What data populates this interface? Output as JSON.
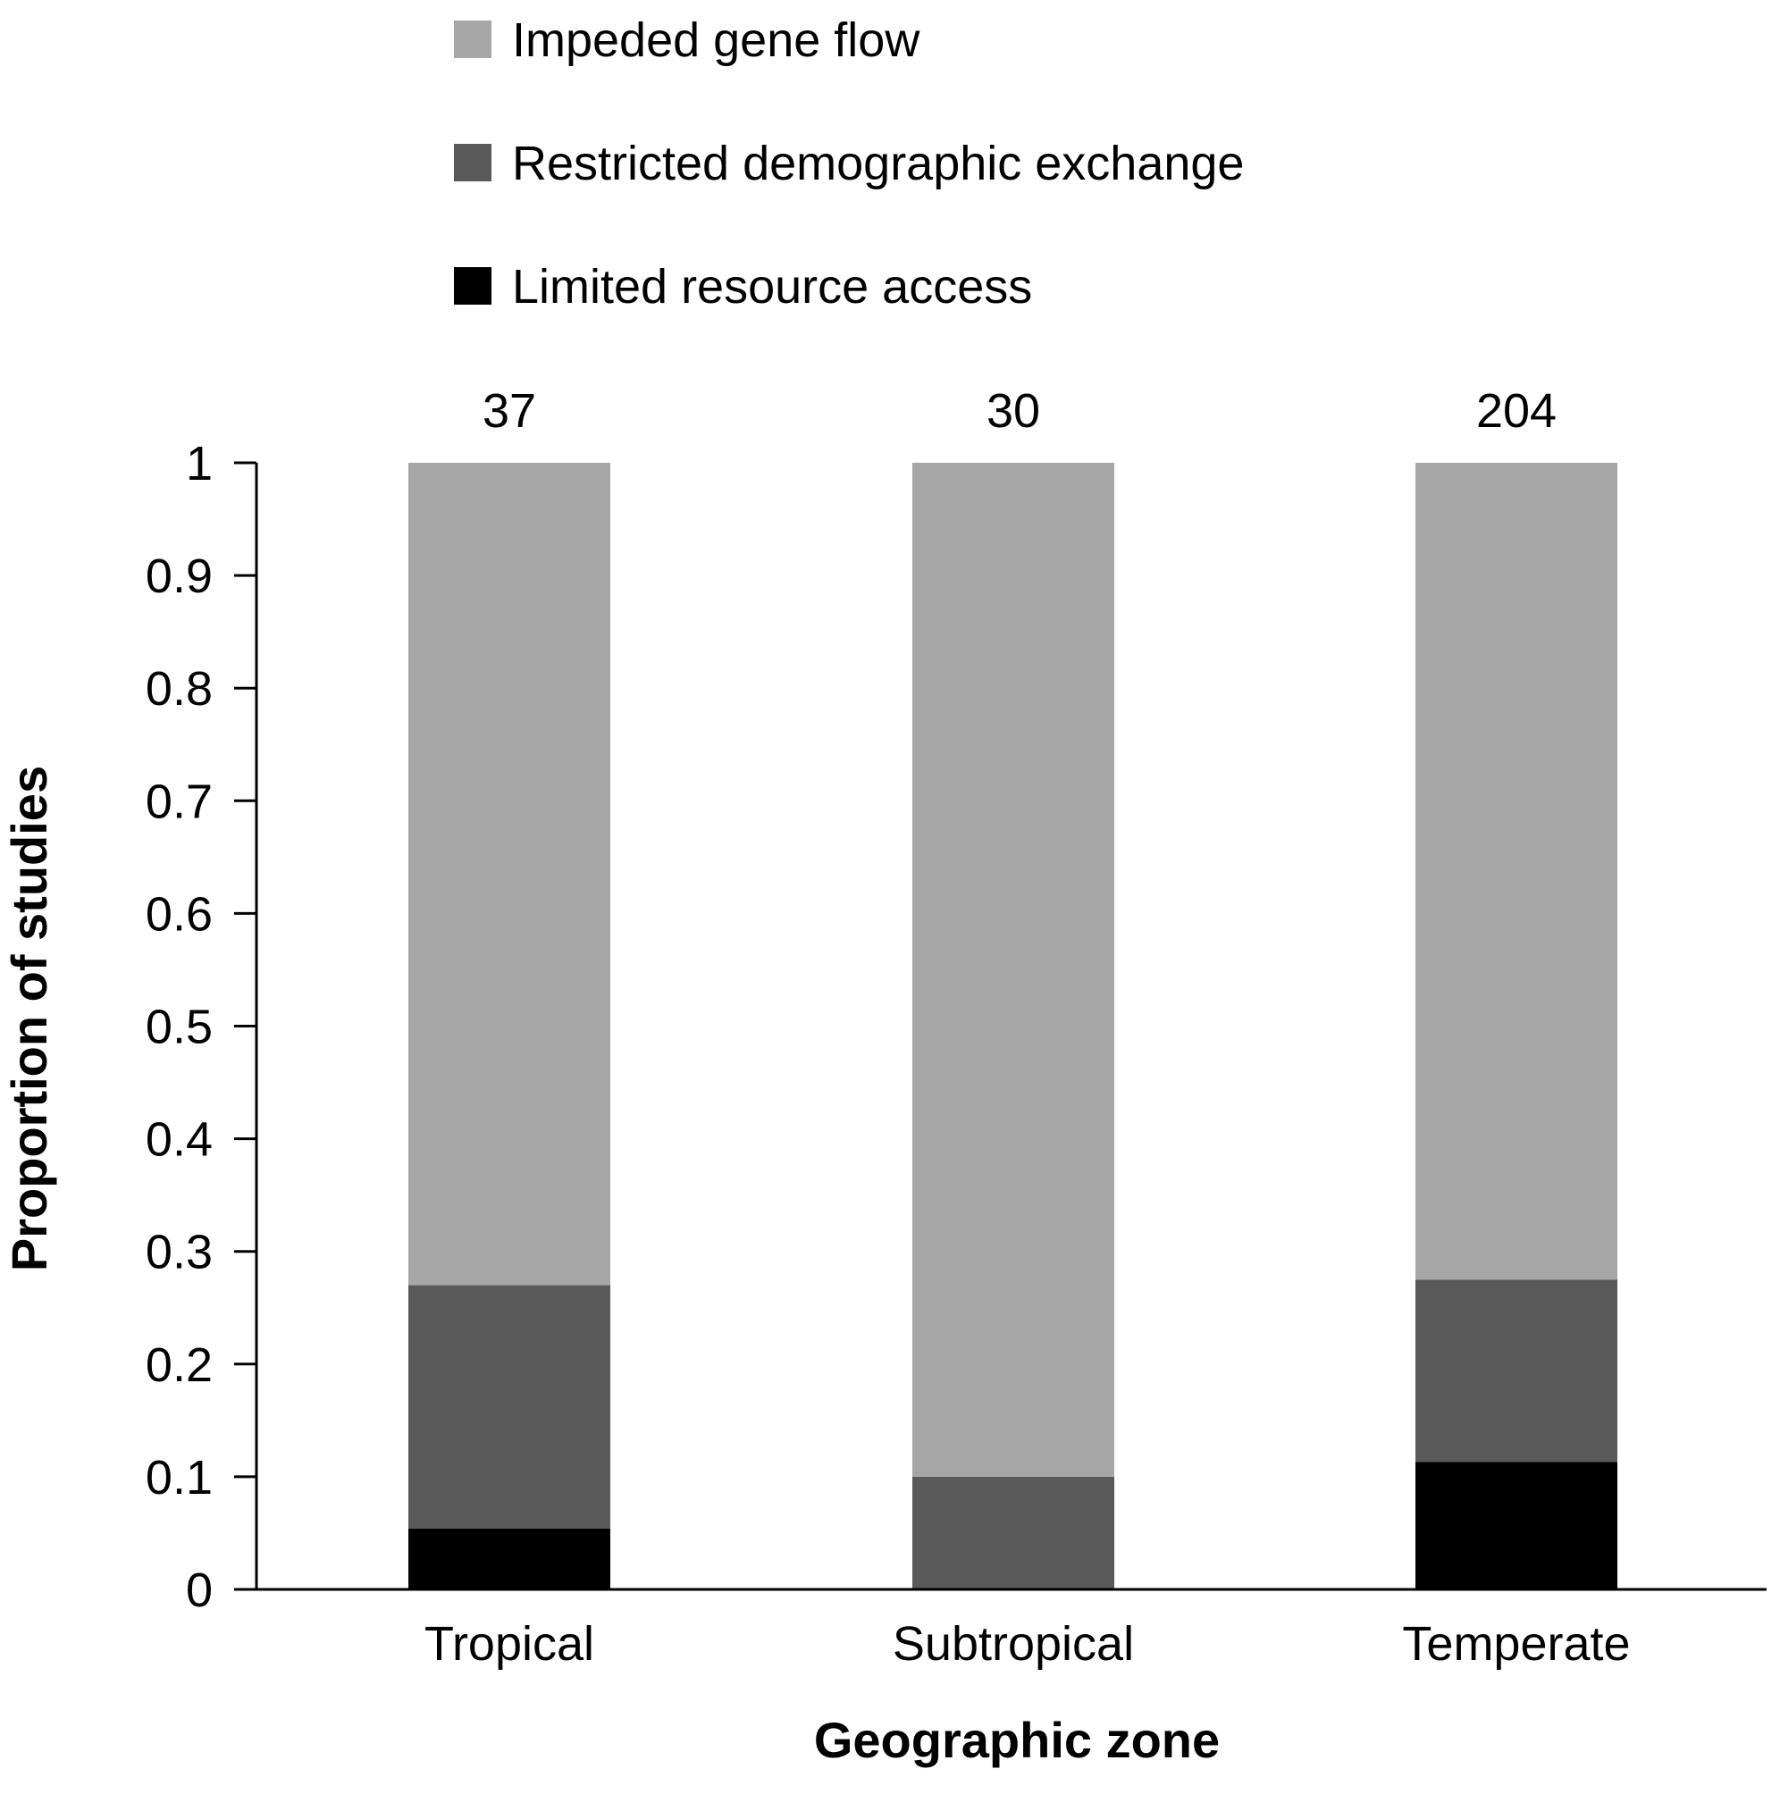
{
  "chart_data": {
    "type": "bar",
    "stacked": true,
    "categories": [
      "Tropical",
      "Subtropical",
      "Temperate"
    ],
    "counts": [
      "37",
      "30",
      "204"
    ],
    "series": [
      {
        "name": "Limited resource access",
        "color": "#000000",
        "values": [
          0.054,
          0.0,
          0.113
        ]
      },
      {
        "name": "Restricted demographic exchange",
        "color": "#595959",
        "values": [
          0.216,
          0.1,
          0.162
        ]
      },
      {
        "name": "Impeded gene flow",
        "color": "#a6a6a6",
        "values": [
          0.73,
          0.9,
          0.725
        ]
      }
    ],
    "legend_order": [
      0,
      1,
      2
    ],
    "legend_position": "top",
    "xlabel": "Geographic zone",
    "ylabel": "Proportion of studies",
    "ylim": [
      0,
      1
    ],
    "yticks": [
      "0",
      "0.1",
      "0.2",
      "0.3",
      "0.4",
      "0.5",
      "0.6",
      "0.7",
      "0.8",
      "0.9",
      "1"
    ],
    "grid": false
  }
}
